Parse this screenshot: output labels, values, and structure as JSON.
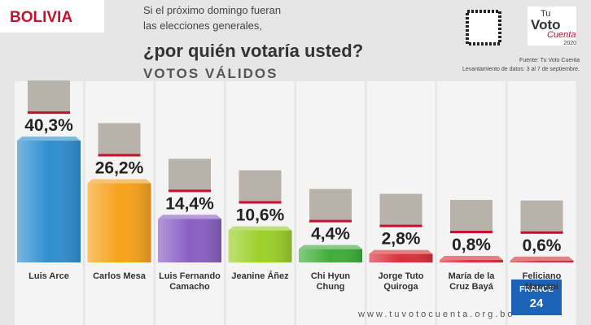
{
  "chart_data": {
    "type": "bar",
    "country": "BOLIVIA",
    "intro": [
      "Si el próximo domingo fueran",
      "las elecciones generales,"
    ],
    "title": "¿por quién votaría usted?",
    "subtitle": "VOTOS VÁLIDOS",
    "logo": {
      "line1": "Tu",
      "line2": "Voto",
      "line3": "Cuenta",
      "year": "2020"
    },
    "source": "Fuente: Tu Voto Cuenta",
    "note": "Levantamiento de datos: 3 al 7 de septiembre.",
    "website": "www.tuvotocuenta.org.bo",
    "broadcaster": {
      "line1": "FRANCE",
      "line2": "24"
    },
    "categories": [
      "Luis Arce",
      "Carlos Mesa",
      "Luis Fernando Camacho",
      "Jeanine Áñez",
      "Chi Hyun Chung",
      "Jorge Tuto Quiroga",
      "María de la Cruz Bayá",
      "Feliciano Mamani"
    ],
    "values": [
      40.3,
      26.2,
      14.4,
      10.6,
      4.4,
      2.8,
      0.8,
      0.6
    ],
    "value_labels": [
      "40,3%",
      "26,2%",
      "14,4%",
      "10,6%",
      "4,4%",
      "2,8%",
      "0,8%",
      "0,6%"
    ],
    "colors": [
      "#2f8fd0",
      "#f7a21b",
      "#8a5fc4",
      "#9bd02a",
      "#3fae3a",
      "#d8303a",
      "#d8303a",
      "#d8303a"
    ]
  }
}
